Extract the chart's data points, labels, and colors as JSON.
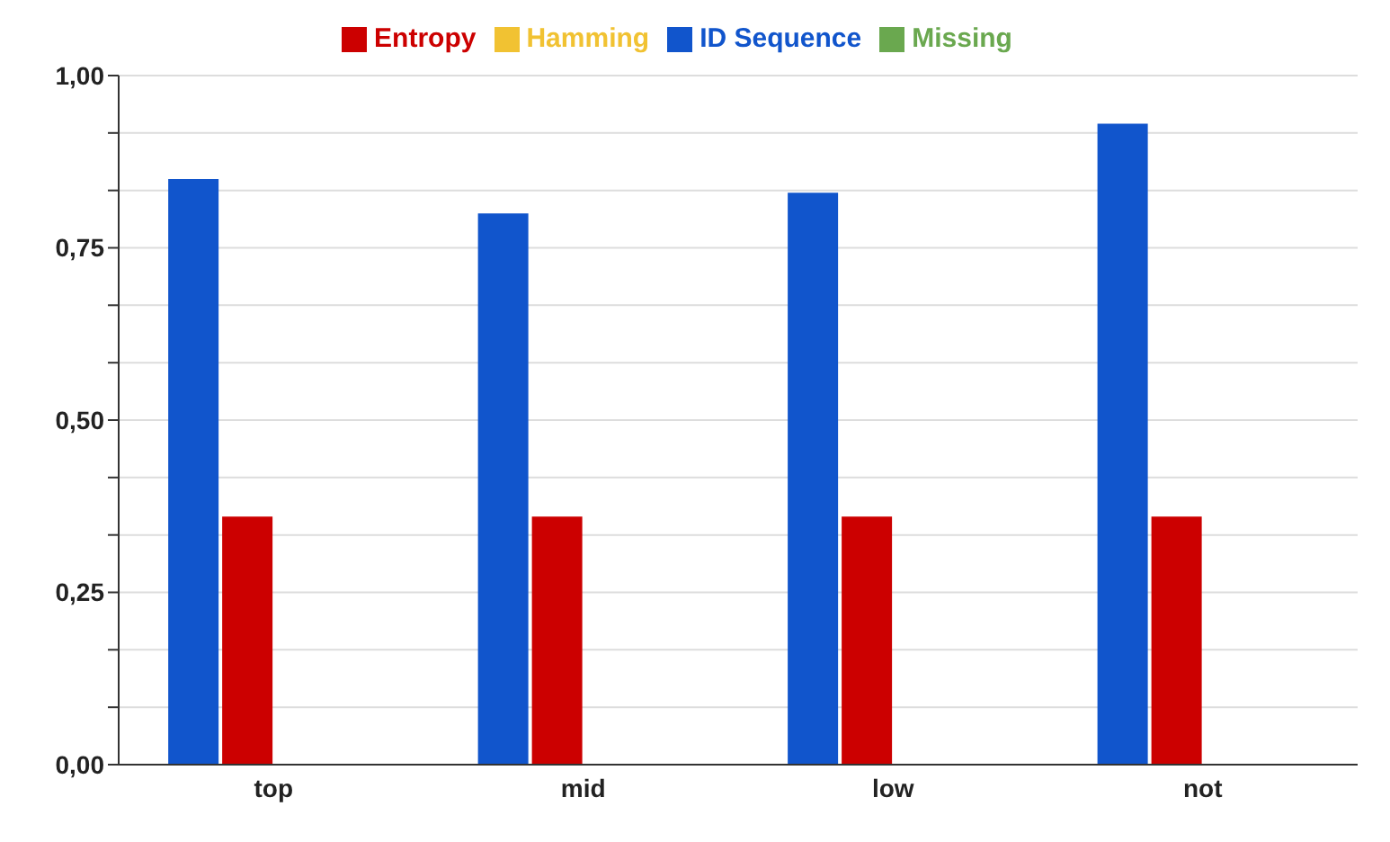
{
  "chart_data": {
    "type": "bar",
    "categories": [
      "top",
      "mid",
      "low",
      "not"
    ],
    "series": [
      {
        "name": "ID Sequence",
        "color": "#1155cc",
        "values": [
          0.85,
          0.8,
          0.83,
          0.93
        ]
      },
      {
        "name": "Entropy",
        "color": "#cc0000",
        "values": [
          0.36,
          0.36,
          0.36,
          0.36
        ]
      },
      {
        "name": "Hamming",
        "color": "#f1c232",
        "values": [
          0,
          0,
          0,
          0
        ]
      },
      {
        "name": "Missing",
        "color": "#6aa84f",
        "values": [
          0,
          0,
          0,
          0
        ]
      }
    ],
    "ylim": [
      0,
      1
    ],
    "yticks": [
      {
        "value": 0,
        "label": "0,00"
      },
      {
        "value": 0.0833,
        "label": null
      },
      {
        "value": 0.1667,
        "label": null
      },
      {
        "value": 0.25,
        "label": "0,25"
      },
      {
        "value": 0.3333,
        "label": null
      },
      {
        "value": 0.4167,
        "label": null
      },
      {
        "value": 0.5,
        "label": "0,50"
      },
      {
        "value": 0.5833,
        "label": null
      },
      {
        "value": 0.6667,
        "label": null
      },
      {
        "value": 0.75,
        "label": "0,75"
      },
      {
        "value": 0.8333,
        "label": null
      },
      {
        "value": 0.9167,
        "label": null
      },
      {
        "value": 1,
        "label": "1,00"
      }
    ],
    "grid": "y",
    "legend": "top"
  }
}
